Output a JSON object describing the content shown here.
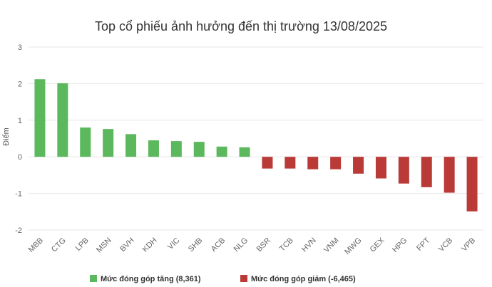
{
  "chart_data": {
    "type": "bar",
    "title": "Top cổ phiếu ảnh hưởng đến thị trường 13/08/2025",
    "ylabel": "Điểm",
    "xlabel": "",
    "ylim": [
      -2,
      3
    ],
    "yticks": [
      3,
      2,
      1,
      0,
      -1,
      -2
    ],
    "grid": true,
    "legend_position": "bottom",
    "categories": [
      "MBB",
      "CTG",
      "LPB",
      "MSN",
      "BVH",
      "KDH",
      "VIC",
      "SHB",
      "ACB",
      "NLG",
      "BSR",
      "TCB",
      "HVN",
      "VNM",
      "MWG",
      "GEX",
      "HPG",
      "FPT",
      "VCB",
      "VPB"
    ],
    "series": [
      {
        "name": "Mức đóng góp tăng (8,361)",
        "color": "#5cb85c",
        "values": [
          2.12,
          2.01,
          0.8,
          0.76,
          0.62,
          0.45,
          0.43,
          0.41,
          0.28,
          0.26,
          null,
          null,
          null,
          null,
          null,
          null,
          null,
          null,
          null,
          null
        ]
      },
      {
        "name": "Mức đóng góp giảm (-6,465)",
        "color": "#b93a36",
        "values": [
          null,
          null,
          null,
          null,
          null,
          null,
          null,
          null,
          null,
          null,
          -0.32,
          -0.32,
          -0.34,
          -0.34,
          -0.46,
          -0.59,
          -0.73,
          -0.83,
          -0.98,
          -1.49
        ]
      }
    ]
  }
}
